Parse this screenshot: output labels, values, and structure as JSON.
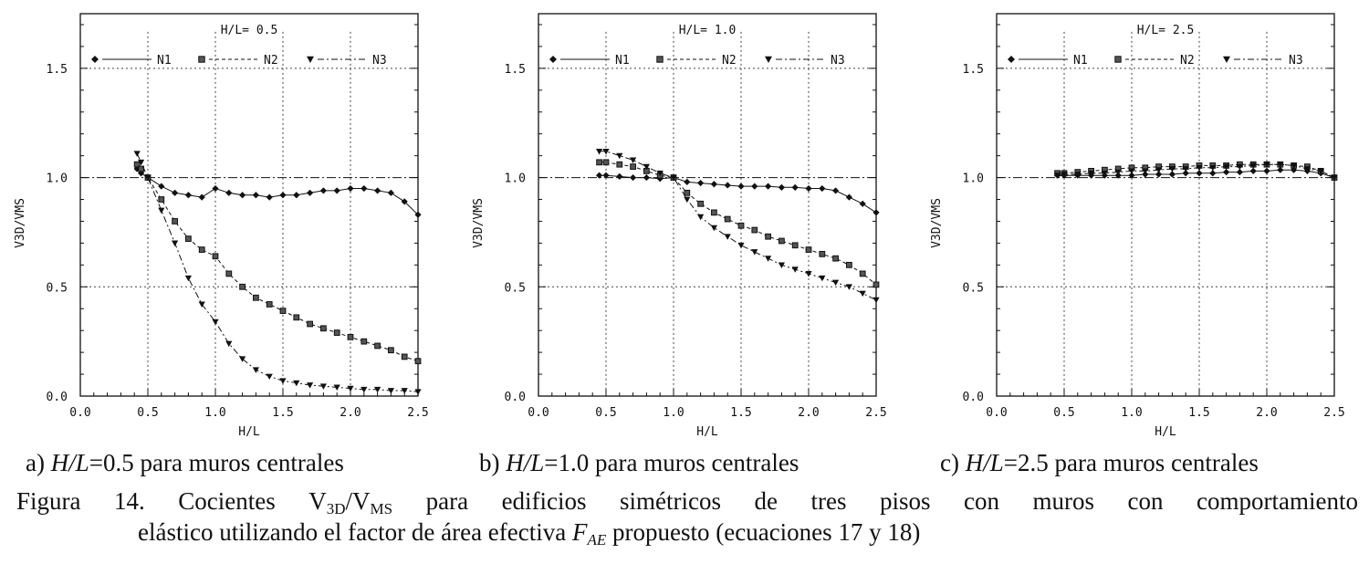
{
  "chart_data": [
    {
      "type": "scatter",
      "title": "H/L= 0.5",
      "xlabel": "H/L",
      "ylabel": "V3D/VMS",
      "xlim": [
        0.0,
        2.5
      ],
      "ylim": [
        0.0,
        1.75
      ],
      "xticks": [
        "0.0",
        "0.5",
        "1.0",
        "1.5",
        "2.0",
        "2.5"
      ],
      "yticks": [
        "0.0",
        "0.5",
        "1.0",
        "1.5"
      ],
      "reference_y": 1.0,
      "series": [
        {
          "name": "N1",
          "marker": "diamond",
          "line": "solid",
          "x": [
            0.42,
            0.45,
            0.5,
            0.6,
            0.7,
            0.8,
            0.9,
            1.0,
            1.1,
            1.2,
            1.3,
            1.4,
            1.5,
            1.6,
            1.7,
            1.8,
            1.9,
            2.0,
            2.1,
            2.2,
            2.3,
            2.4,
            2.5
          ],
          "y": [
            1.04,
            1.02,
            1.0,
            0.96,
            0.93,
            0.92,
            0.91,
            0.95,
            0.93,
            0.92,
            0.92,
            0.91,
            0.92,
            0.92,
            0.93,
            0.94,
            0.94,
            0.95,
            0.95,
            0.94,
            0.93,
            0.89,
            0.83
          ]
        },
        {
          "name": "N2",
          "marker": "square",
          "line": "dashed",
          "x": [
            0.42,
            0.45,
            0.5,
            0.6,
            0.7,
            0.8,
            0.9,
            1.0,
            1.1,
            1.2,
            1.3,
            1.4,
            1.5,
            1.6,
            1.7,
            1.8,
            1.9,
            2.0,
            2.1,
            2.2,
            2.3,
            2.4,
            2.5
          ],
          "y": [
            1.06,
            1.04,
            1.0,
            0.9,
            0.8,
            0.72,
            0.67,
            0.64,
            0.56,
            0.5,
            0.45,
            0.42,
            0.39,
            0.36,
            0.33,
            0.31,
            0.29,
            0.27,
            0.25,
            0.23,
            0.21,
            0.18,
            0.16
          ]
        },
        {
          "name": "N3",
          "marker": "triangle",
          "line": "dashdot",
          "x": [
            0.42,
            0.45,
            0.5,
            0.6,
            0.7,
            0.8,
            0.9,
            1.0,
            1.1,
            1.2,
            1.3,
            1.4,
            1.5,
            1.6,
            1.7,
            1.8,
            1.9,
            2.0,
            2.1,
            2.2,
            2.3,
            2.4,
            2.5
          ],
          "y": [
            1.11,
            1.07,
            1.0,
            0.85,
            0.7,
            0.54,
            0.42,
            0.34,
            0.24,
            0.17,
            0.12,
            0.09,
            0.07,
            0.06,
            0.05,
            0.045,
            0.04,
            0.035,
            0.03,
            0.03,
            0.025,
            0.025,
            0.02
          ]
        }
      ]
    },
    {
      "type": "scatter",
      "title": "H/L= 1.0",
      "xlabel": "H/L",
      "ylabel": "V3D/VMS",
      "xlim": [
        0.0,
        2.5
      ],
      "ylim": [
        0.0,
        1.75
      ],
      "xticks": [
        "0.0",
        "0.5",
        "1.0",
        "1.5",
        "2.0",
        "2.5"
      ],
      "yticks": [
        "0.0",
        "0.5",
        "1.0",
        "1.5"
      ],
      "reference_y": 1.0,
      "series": [
        {
          "name": "N1",
          "marker": "diamond",
          "line": "solid",
          "x": [
            0.45,
            0.5,
            0.6,
            0.7,
            0.8,
            0.9,
            1.0,
            1.1,
            1.2,
            1.3,
            1.4,
            1.5,
            1.6,
            1.7,
            1.8,
            1.9,
            2.0,
            2.1,
            2.2,
            2.3,
            2.4,
            2.5
          ],
          "y": [
            1.01,
            1.01,
            1.005,
            1.0,
            1.0,
            0.995,
            1.0,
            0.98,
            0.975,
            0.97,
            0.965,
            0.96,
            0.96,
            0.96,
            0.955,
            0.955,
            0.95,
            0.95,
            0.94,
            0.91,
            0.88,
            0.84
          ]
        },
        {
          "name": "N2",
          "marker": "square",
          "line": "dashed",
          "x": [
            0.45,
            0.5,
            0.6,
            0.7,
            0.8,
            0.9,
            1.0,
            1.1,
            1.2,
            1.3,
            1.4,
            1.5,
            1.6,
            1.7,
            1.8,
            1.9,
            2.0,
            2.1,
            2.2,
            2.3,
            2.4,
            2.5
          ],
          "y": [
            1.07,
            1.07,
            1.06,
            1.05,
            1.03,
            1.01,
            1.0,
            0.93,
            0.88,
            0.84,
            0.81,
            0.78,
            0.76,
            0.73,
            0.71,
            0.69,
            0.67,
            0.65,
            0.63,
            0.6,
            0.56,
            0.51
          ]
        },
        {
          "name": "N3",
          "marker": "triangle",
          "line": "dashdot",
          "x": [
            0.45,
            0.5,
            0.6,
            0.7,
            0.8,
            0.9,
            1.0,
            1.1,
            1.2,
            1.3,
            1.4,
            1.5,
            1.6,
            1.7,
            1.8,
            1.9,
            2.0,
            2.1,
            2.2,
            2.3,
            2.4,
            2.5
          ],
          "y": [
            1.12,
            1.12,
            1.1,
            1.08,
            1.05,
            1.02,
            1.0,
            0.9,
            0.82,
            0.77,
            0.73,
            0.69,
            0.66,
            0.63,
            0.6,
            0.58,
            0.56,
            0.54,
            0.52,
            0.5,
            0.47,
            0.44
          ]
        }
      ]
    },
    {
      "type": "scatter",
      "title": "H/L= 2.5",
      "xlabel": "H/L",
      "ylabel": "V3D/VMS",
      "xlim": [
        0.0,
        2.5
      ],
      "ylim": [
        0.0,
        1.75
      ],
      "xticks": [
        "0.0",
        "0.5",
        "1.0",
        "1.5",
        "2.0",
        "2.5"
      ],
      "yticks": [
        "0.0",
        "0.5",
        "1.0",
        "1.5"
      ],
      "reference_y": 1.0,
      "series": [
        {
          "name": "N1",
          "marker": "diamond",
          "line": "solid",
          "x": [
            0.45,
            0.5,
            0.6,
            0.7,
            0.8,
            0.9,
            1.0,
            1.1,
            1.2,
            1.3,
            1.4,
            1.5,
            1.6,
            1.7,
            1.8,
            1.9,
            2.0,
            2.1,
            2.2,
            2.3,
            2.4,
            2.5
          ],
          "y": [
            1.01,
            1.01,
            1.01,
            1.01,
            1.01,
            1.01,
            1.01,
            1.015,
            1.015,
            1.015,
            1.02,
            1.02,
            1.02,
            1.025,
            1.025,
            1.03,
            1.03,
            1.035,
            1.035,
            1.03,
            1.02,
            1.0
          ]
        },
        {
          "name": "N2",
          "marker": "square",
          "line": "dashed",
          "x": [
            0.45,
            0.5,
            0.6,
            0.7,
            0.8,
            0.9,
            1.0,
            1.1,
            1.2,
            1.3,
            1.4,
            1.5,
            1.6,
            1.7,
            1.8,
            1.9,
            2.0,
            2.1,
            2.2,
            2.3,
            2.4,
            2.5
          ],
          "y": [
            1.02,
            1.02,
            1.025,
            1.03,
            1.035,
            1.04,
            1.045,
            1.045,
            1.05,
            1.05,
            1.05,
            1.055,
            1.055,
            1.055,
            1.06,
            1.06,
            1.06,
            1.06,
            1.055,
            1.05,
            1.03,
            1.0
          ]
        },
        {
          "name": "N3",
          "marker": "triangle",
          "line": "dashdot",
          "x": [
            0.45,
            0.5,
            0.6,
            0.7,
            0.8,
            0.9,
            1.0,
            1.1,
            1.2,
            1.3,
            1.4,
            1.5,
            1.6,
            1.7,
            1.8,
            1.9,
            2.0,
            2.1,
            2.2,
            2.3,
            2.4,
            2.5
          ],
          "y": [
            1.01,
            1.015,
            1.015,
            1.02,
            1.02,
            1.025,
            1.03,
            1.03,
            1.035,
            1.04,
            1.04,
            1.045,
            1.045,
            1.05,
            1.05,
            1.055,
            1.06,
            1.06,
            1.055,
            1.04,
            1.03,
            1.0
          ]
        }
      ]
    }
  ],
  "subcaptions": [
    {
      "letter": "a)",
      "ratio": "H/L",
      "value": "=0.5 para muros centrales"
    },
    {
      "letter": "b)",
      "ratio": "H/L",
      "value": "=1.0 para muros centrales"
    },
    {
      "letter": "c)",
      "ratio": "H/L",
      "value": "=2.5 para muros centrales"
    }
  ],
  "caption": {
    "w1": "Figura",
    "w2": "14.",
    "w3": "Cocientes",
    "ratio_a": "V",
    "sub_a": "3D",
    "slash": "/V",
    "sub_b": "MS",
    "w4": "para",
    "w5": "edificios",
    "w6": "simétricos",
    "w7": "de",
    "w8": "tres",
    "w9": "pisos",
    "w10": "con",
    "w11": "muros",
    "w12": "con",
    "w13": "comportamiento",
    "line2_pre": "elástico utilizando el factor de área efectiva ",
    "factor": "F",
    "factor_sub": "AE",
    "line2_post": " propuesto (ecuaciones 17 y 18)"
  }
}
